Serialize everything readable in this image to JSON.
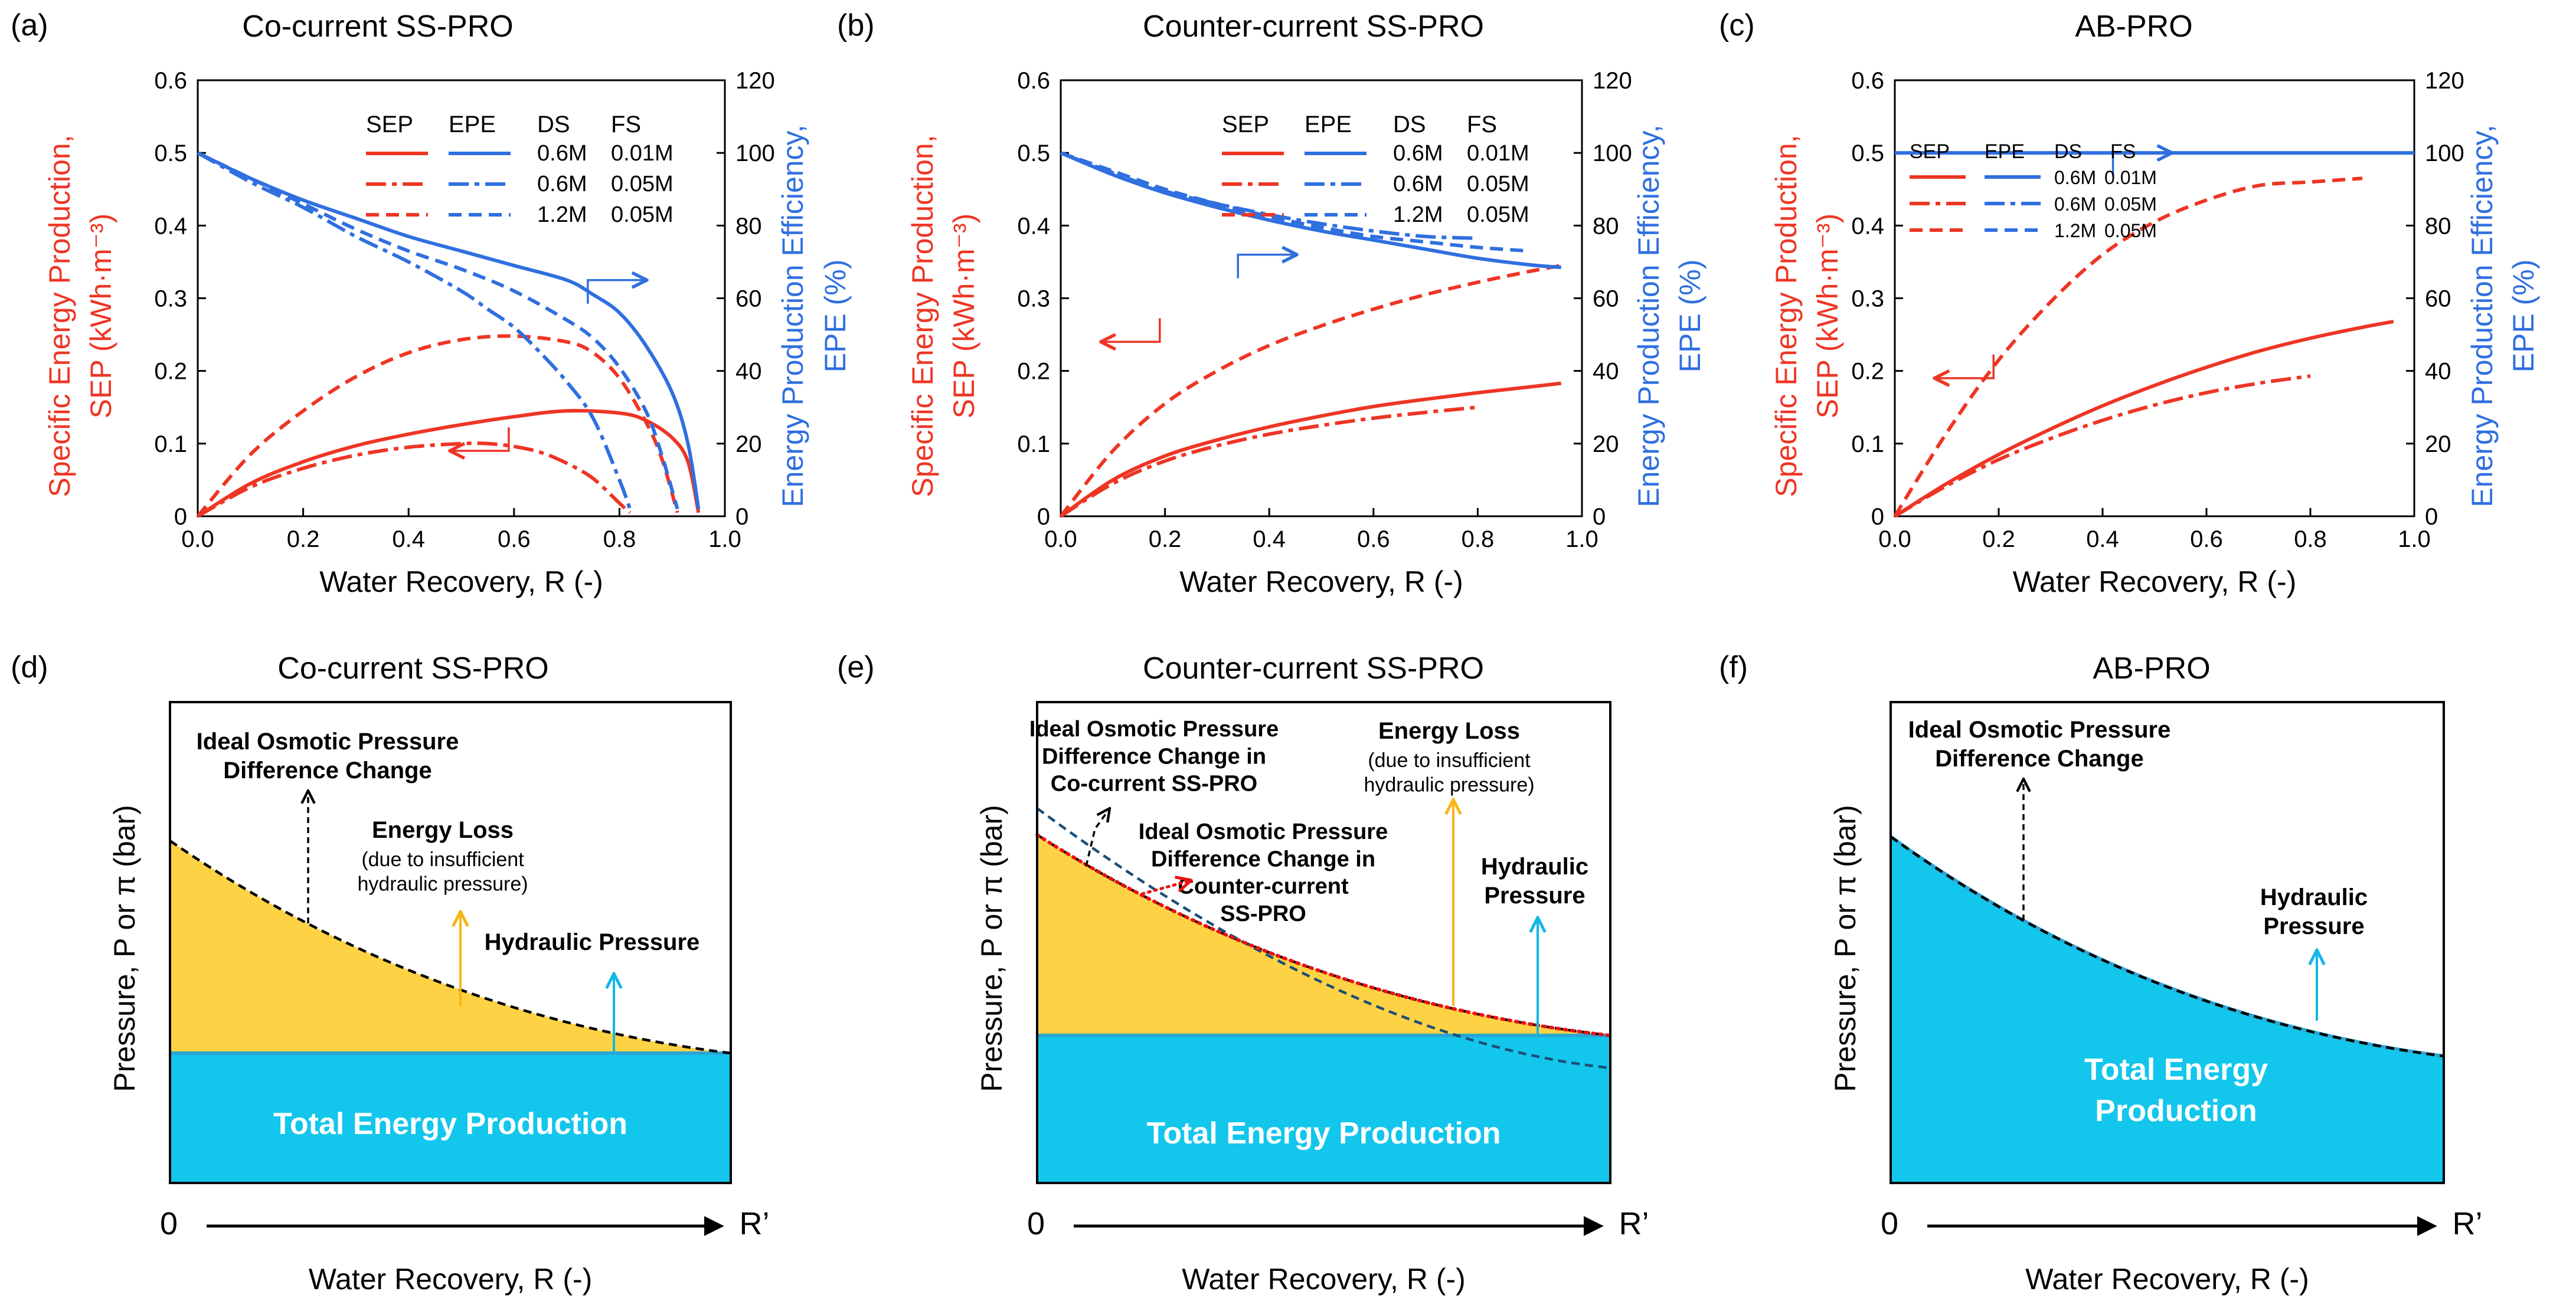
{
  "colors": {
    "sep": "#ee3524",
    "epe": "#2f6fe0",
    "cyan": "#12c6ec",
    "yellow": "#fed245",
    "black": "#000000"
  },
  "chart_data": [
    {
      "panel_label": "(a)",
      "title": "Co-current SS-PRO",
      "type": "line",
      "xlabel": "Water Recovery, R (-)",
      "ylabel_lines": [
        "Specific Energy Production,",
        "SEP (kWh·m⁻³)"
      ],
      "y2label_lines": [
        "Energy Production Efficiency,",
        "EPE (%)"
      ],
      "xlim": [
        0,
        1.0
      ],
      "ylim": [
        0,
        0.6
      ],
      "y2lim": [
        0,
        120
      ],
      "xticks": [
        "0.0",
        "0.2",
        "0.4",
        "0.6",
        "0.8",
        "1.0"
      ],
      "yticks": [
        "0",
        "0.1",
        "0.2",
        "0.3",
        "0.4",
        "0.5",
        "0.6"
      ],
      "y2ticks": [
        "0",
        "20",
        "40",
        "60",
        "80",
        "100",
        "120"
      ],
      "legend": {
        "headers": [
          "SEP",
          "EPE",
          "DS",
          "FS"
        ],
        "rows": [
          [
            "0.6M",
            "0.01M"
          ],
          [
            "0.6M",
            "0.05M"
          ],
          [
            "1.2M",
            "0.05M"
          ]
        ]
      },
      "series": [
        {
          "name": "SEP 0.6M DS / 0.01M FS",
          "axis": "left",
          "style": "solid",
          "x": [
            0,
            0.1,
            0.2,
            0.3,
            0.4,
            0.5,
            0.6,
            0.7,
            0.8,
            0.85,
            0.9,
            0.93,
            0.95
          ],
          "y": [
            0,
            0.045,
            0.075,
            0.097,
            0.113,
            0.126,
            0.137,
            0.145,
            0.142,
            0.132,
            0.108,
            0.075,
            0.005
          ]
        },
        {
          "name": "SEP 0.6M DS / 0.05M FS",
          "axis": "left",
          "style": "dashdot",
          "x": [
            0,
            0.1,
            0.2,
            0.3,
            0.4,
            0.5,
            0.55,
            0.6,
            0.65,
            0.7,
            0.75,
            0.8,
            0.82
          ],
          "y": [
            0,
            0.04,
            0.066,
            0.084,
            0.095,
            0.1,
            0.1,
            0.096,
            0.088,
            0.073,
            0.052,
            0.018,
            0.005
          ]
        },
        {
          "name": "SEP 1.2M DS / 0.05M FS",
          "axis": "left",
          "style": "dashed",
          "x": [
            0,
            0.1,
            0.2,
            0.3,
            0.4,
            0.5,
            0.6,
            0.7,
            0.75,
            0.8,
            0.85,
            0.88,
            0.91
          ],
          "y": [
            0,
            0.085,
            0.145,
            0.192,
            0.225,
            0.243,
            0.248,
            0.24,
            0.225,
            0.19,
            0.13,
            0.08,
            0.005
          ]
        },
        {
          "name": "EPE 0.6M DS / 0.01M FS",
          "axis": "right",
          "style": "solid",
          "x": [
            0,
            0.1,
            0.2,
            0.3,
            0.4,
            0.5,
            0.6,
            0.7,
            0.75,
            0.8,
            0.85,
            0.9,
            0.93,
            0.95
          ],
          "y": [
            100,
            93,
            87,
            82,
            77,
            73,
            69,
            65,
            61,
            56,
            47,
            34,
            20,
            2
          ]
        },
        {
          "name": "EPE 0.6M DS / 0.05M FS",
          "axis": "right",
          "style": "dashdot",
          "x": [
            0,
            0.1,
            0.2,
            0.3,
            0.4,
            0.5,
            0.55,
            0.6,
            0.65,
            0.7,
            0.75,
            0.8,
            0.82
          ],
          "y": [
            100,
            92,
            85,
            77,
            70,
            62,
            57,
            52,
            45,
            37,
            27,
            10,
            2
          ]
        },
        {
          "name": "EPE 1.2M DS / 0.05M FS",
          "axis": "right",
          "style": "dashed",
          "x": [
            0,
            0.1,
            0.2,
            0.3,
            0.4,
            0.5,
            0.6,
            0.7,
            0.75,
            0.8,
            0.85,
            0.88,
            0.91
          ],
          "y": [
            100,
            93,
            86,
            79,
            73,
            68,
            62,
            54,
            49,
            41,
            29,
            17,
            2
          ]
        }
      ],
      "annotations": [
        {
          "arrow_to": "right",
          "color": "epe",
          "at": {
            "x": 0.74,
            "y2": 65
          }
        },
        {
          "arrow_to": "left",
          "color": "sep",
          "at": {
            "x": 0.59,
            "y": 0.09
          }
        }
      ]
    },
    {
      "panel_label": "(b)",
      "title": "Counter-current SS-PRO",
      "type": "line",
      "xlabel": "Water Recovery, R (-)",
      "ylabel_lines": [
        "Specific Energy Production,",
        "SEP (kWh·m⁻³)"
      ],
      "y2label_lines": [
        "Energy Production Efficiency,",
        "EPE (%)"
      ],
      "xlim": [
        0,
        1.0
      ],
      "ylim": [
        0,
        0.6
      ],
      "y2lim": [
        0,
        120
      ],
      "xticks": [
        "0.0",
        "0.2",
        "0.4",
        "0.6",
        "0.8",
        "1.0"
      ],
      "yticks": [
        "0",
        "0.1",
        "0.2",
        "0.3",
        "0.4",
        "0.5",
        "0.6"
      ],
      "y2ticks": [
        "0",
        "20",
        "40",
        "60",
        "80",
        "100",
        "120"
      ],
      "legend": {
        "headers": [
          "SEP",
          "EPE",
          "DS",
          "FS"
        ],
        "rows": [
          [
            "0.6M",
            "0.01M"
          ],
          [
            "0.6M",
            "0.05M"
          ],
          [
            "1.2M",
            "0.05M"
          ]
        ]
      },
      "series": [
        {
          "name": "SEP 0.6M DS / 0.01M FS",
          "axis": "left",
          "style": "solid",
          "x": [
            0,
            0.1,
            0.2,
            0.3,
            0.4,
            0.5,
            0.6,
            0.7,
            0.8,
            0.9,
            0.96
          ],
          "y": [
            0,
            0.05,
            0.083,
            0.105,
            0.123,
            0.138,
            0.151,
            0.161,
            0.17,
            0.178,
            0.183
          ]
        },
        {
          "name": "SEP 0.6M DS / 0.05M FS",
          "axis": "left",
          "style": "dashdot",
          "x": [
            0,
            0.1,
            0.2,
            0.3,
            0.4,
            0.5,
            0.6,
            0.7,
            0.8
          ],
          "y": [
            0,
            0.045,
            0.076,
            0.097,
            0.113,
            0.125,
            0.135,
            0.143,
            0.15
          ]
        },
        {
          "name": "SEP 1.2M DS / 0.05M FS",
          "axis": "left",
          "style": "dashed",
          "x": [
            0,
            0.1,
            0.2,
            0.3,
            0.4,
            0.5,
            0.6,
            0.7,
            0.8,
            0.9,
            0.96
          ],
          "y": [
            0,
            0.09,
            0.155,
            0.2,
            0.235,
            0.262,
            0.285,
            0.305,
            0.322,
            0.337,
            0.345
          ]
        },
        {
          "name": "EPE 0.6M DS / 0.01M FS",
          "axis": "right",
          "style": "solid",
          "x": [
            0,
            0.1,
            0.2,
            0.3,
            0.4,
            0.5,
            0.6,
            0.7,
            0.8,
            0.9,
            0.96
          ],
          "y": [
            100,
            94,
            89,
            85,
            81.5,
            78.5,
            76,
            73.5,
            71,
            69.2,
            68.5
          ]
        },
        {
          "name": "EPE 0.6M DS / 0.05M FS",
          "axis": "right",
          "style": "dashdot",
          "x": [
            0,
            0.1,
            0.2,
            0.3,
            0.4,
            0.5,
            0.6,
            0.7,
            0.8
          ],
          "y": [
            100,
            94.5,
            89.5,
            86,
            83,
            80.5,
            78.5,
            77,
            76.5
          ]
        },
        {
          "name": "EPE 1.2M DS / 0.05M FS",
          "axis": "right",
          "style": "dashed",
          "x": [
            0,
            0.1,
            0.2,
            0.3,
            0.4,
            0.5,
            0.6,
            0.7,
            0.8,
            0.9
          ],
          "y": [
            100,
            95,
            90,
            86,
            82.5,
            79.5,
            77,
            75.5,
            74,
            73
          ]
        }
      ],
      "annotations": [
        {
          "arrow_to": "right",
          "color": "epe",
          "at": {
            "x": 0.34,
            "y2": 72
          }
        },
        {
          "arrow_to": "left",
          "color": "sep",
          "at": {
            "x": 0.19,
            "y": 0.24
          }
        }
      ]
    },
    {
      "panel_label": "(c)",
      "title": "AB-PRO",
      "type": "line",
      "xlabel": "Water Recovery, R (-)",
      "ylabel_lines": [
        "Specific Energy Production,",
        "SEP (kWh·m⁻³)"
      ],
      "y2label_lines": [
        "Energy Production Efficiency,",
        "EPE (%)"
      ],
      "xlim": [
        0,
        1.0
      ],
      "ylim": [
        0,
        0.6
      ],
      "y2lim": [
        0,
        120
      ],
      "xticks": [
        "0.0",
        "0.2",
        "0.4",
        "0.6",
        "0.8",
        "1.0"
      ],
      "yticks": [
        "0",
        "0.1",
        "0.2",
        "0.3",
        "0.4",
        "0.5",
        "0.6"
      ],
      "y2ticks": [
        "0",
        "20",
        "40",
        "60",
        "80",
        "100",
        "120"
      ],
      "legend": {
        "headers": [
          "SEP",
          "EPE",
          "DS",
          "FS"
        ],
        "rows": [
          [
            "0.6M",
            "0.01M"
          ],
          [
            "0.6M",
            "0.05M"
          ],
          [
            "1.2M",
            "0.05M"
          ]
        ]
      },
      "series": [
        {
          "name": "SEP 0.6M DS / 0.01M FS",
          "axis": "left",
          "style": "solid",
          "x": [
            0,
            0.1,
            0.2,
            0.3,
            0.4,
            0.5,
            0.6,
            0.7,
            0.8,
            0.9,
            0.96
          ],
          "y": [
            0,
            0.045,
            0.085,
            0.12,
            0.152,
            0.18,
            0.205,
            0.227,
            0.245,
            0.26,
            0.268
          ]
        },
        {
          "name": "SEP 0.6M DS / 0.05M FS",
          "axis": "left",
          "style": "dashdot",
          "x": [
            0,
            0.1,
            0.2,
            0.3,
            0.4,
            0.5,
            0.6,
            0.7,
            0.8
          ],
          "y": [
            0,
            0.042,
            0.078,
            0.107,
            0.132,
            0.153,
            0.17,
            0.183,
            0.193
          ]
        },
        {
          "name": "SEP 1.2M DS / 0.05M FS",
          "axis": "left",
          "style": "dashed",
          "x": [
            0,
            0.1,
            0.2,
            0.3,
            0.4,
            0.5,
            0.6,
            0.7,
            0.8,
            0.9
          ],
          "y": [
            0,
            0.115,
            0.215,
            0.295,
            0.36,
            0.405,
            0.435,
            0.455,
            0.46,
            0.465
          ]
        },
        {
          "name": "EPE 0.6M DS / 0.01M FS",
          "axis": "right",
          "style": "solid",
          "x": [
            0,
            1.0
          ],
          "y": [
            100,
            100
          ]
        }
      ],
      "annotations": [
        {
          "arrow_to": "right",
          "color": "epe",
          "at": {
            "x": 0.42,
            "y2": 100
          }
        },
        {
          "arrow_to": "left",
          "color": "sep",
          "at": {
            "x": 0.19,
            "y": 0.19
          }
        }
      ]
    }
  ],
  "diagrams": [
    {
      "panel_label": "(d)",
      "title": "Co-current SS-PRO",
      "ylabel": "Pressure,  P or π (bar)",
      "xlabel": "Water Recovery,  R (-)",
      "x_start": "0",
      "x_end": "R’",
      "fill_label": "Total Energy Production",
      "texts": {
        "ideal": [
          "Ideal Osmotic Pressure",
          "Difference Change"
        ],
        "loss_title": "Energy Loss",
        "loss_sub": [
          "(due to insufficient",
          "hydraulic pressure)"
        ],
        "hydraulic": [
          "Hydraulic Pressure"
        ]
      }
    },
    {
      "panel_label": "(e)",
      "title": "Counter-current SS-PRO",
      "ylabel": "Pressure,  P or π (bar)",
      "xlabel": "Water Recovery,  R (-)",
      "x_start": "0",
      "x_end": "R’",
      "fill_label": "Total Energy Production",
      "texts": {
        "ideal_co": [
          "Ideal Osmotic Pressure",
          "Difference Change in",
          "Co-current SS-PRO"
        ],
        "ideal_counter": [
          "Ideal Osmotic Pressure",
          "Difference Change in",
          "Counter-current",
          "SS-PRO"
        ],
        "loss_title": "Energy Loss",
        "loss_sub": [
          "(due to insufficient",
          "hydraulic pressure)"
        ],
        "hydraulic": [
          "Hydraulic",
          "Pressure"
        ]
      }
    },
    {
      "panel_label": "(f)",
      "title": "AB-PRO",
      "ylabel": "Pressure,  P or π (bar)",
      "xlabel": "Water Recovery,  R (-)",
      "x_start": "0",
      "x_end": "R’",
      "fill_label": [
        "Total Energy",
        "Production"
      ],
      "texts": {
        "ideal": [
          "Ideal Osmotic Pressure",
          "Difference Change"
        ],
        "hydraulic": [
          "Hydraulic",
          "Pressure"
        ]
      }
    }
  ]
}
